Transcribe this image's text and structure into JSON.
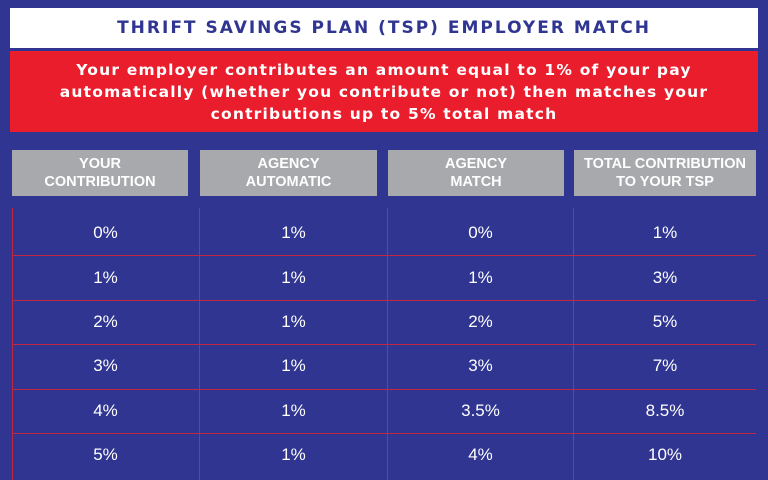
{
  "title": "THRIFT SAVINGS PLAN (TSP) EMPLOYER MATCH",
  "subtitle": {
    "line1": "Your employer contributes an amount equal to 1% of your pay",
    "line2": "automatically (whether you contribute or not) then matches your",
    "line3": "contributions up to 5% total match"
  },
  "table": {
    "headers": [
      {
        "line1": "YOUR",
        "line2": "CONTRIBUTION"
      },
      {
        "line1": "AGENCY",
        "line2": "AUTOMATIC"
      },
      {
        "line1": "AGENCY",
        "line2": "MATCH"
      },
      {
        "line1": "TOTAL CONTRIBUTION",
        "line2": "TO YOUR TSP"
      }
    ],
    "rows": [
      [
        "0%",
        "1%",
        "0%",
        "1%"
      ],
      [
        "1%",
        "1%",
        "1%",
        "3%"
      ],
      [
        "2%",
        "1%",
        "2%",
        "5%"
      ],
      [
        "3%",
        "1%",
        "3%",
        "7%"
      ],
      [
        "4%",
        "1%",
        "3.5%",
        "8.5%"
      ],
      [
        "5%",
        "1%",
        "4%",
        "10%"
      ]
    ]
  },
  "colors": {
    "background": "#2f3591",
    "accent_red": "#ea1d2c",
    "header_gray": "#a7a9ac",
    "grid_line": "#c0283f"
  }
}
